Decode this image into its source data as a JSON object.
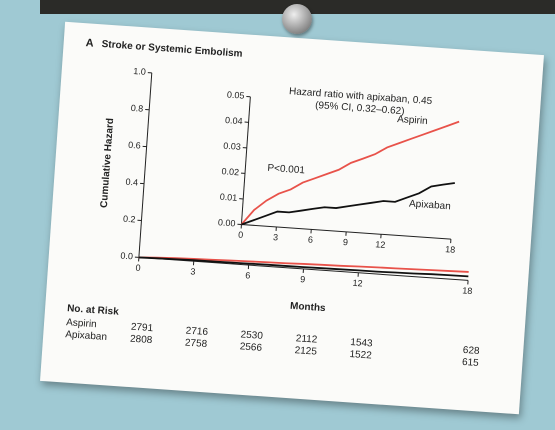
{
  "chart_data": {
    "type": "line",
    "panel": "A",
    "title": "Stroke or Systemic Embolism",
    "y_label": "Cumulative Hazard",
    "x_label": "Months",
    "annotations": [
      "Hazard ratio with apixaban, 0.45",
      "(95% CI, 0.32–0.62)",
      "P<0.001"
    ],
    "x": [
      0,
      1,
      2,
      3,
      4,
      5,
      6,
      7,
      8,
      9,
      10,
      11,
      12,
      13,
      14,
      15,
      16,
      17,
      18
    ],
    "series": [
      {
        "name": "Aspirin",
        "color": "#e8524a",
        "values": [
          0,
          0.006,
          0.01,
          0.013,
          0.015,
          0.018,
          0.02,
          0.022,
          0.024,
          0.027,
          0.029,
          0.031,
          0.034,
          0.036,
          0.038,
          0.04,
          0.042,
          0.044,
          0.046
        ]
      },
      {
        "name": "Apixaban",
        "color": "#111111",
        "values": [
          0,
          0.002,
          0.004,
          0.006,
          0.006,
          0.007,
          0.008,
          0.009,
          0.009,
          0.01,
          0.011,
          0.012,
          0.013,
          0.013,
          0.015,
          0.017,
          0.02,
          0.021,
          0.022
        ]
      }
    ],
    "xlim": [
      0,
      18
    ],
    "xticks": [
      0,
      3,
      6,
      9,
      12,
      18
    ],
    "ylim": [
      0,
      1
    ],
    "yticks": [
      {
        "value": 0,
        "label": "0.0"
      },
      0.2,
      0.4,
      0.6,
      0.8,
      {
        "value": 1,
        "label": "1.0"
      }
    ],
    "inset": {
      "ylim": [
        0,
        0.05
      ],
      "yticks": [
        {
          "value": 0,
          "label": "0.00"
        },
        0.01,
        0.02,
        0.03,
        0.04,
        0.05
      ],
      "xticks": [
        0,
        3,
        6,
        9,
        12,
        18
      ]
    },
    "risk_table": {
      "title": "No. at Risk",
      "rows": [
        {
          "name": "Aspirin",
          "values": [
            2791,
            2716,
            2530,
            2112,
            1543,
            628
          ]
        },
        {
          "name": "Apixaban",
          "values": [
            2808,
            2758,
            2566,
            2125,
            1522,
            615
          ]
        }
      ]
    }
  }
}
